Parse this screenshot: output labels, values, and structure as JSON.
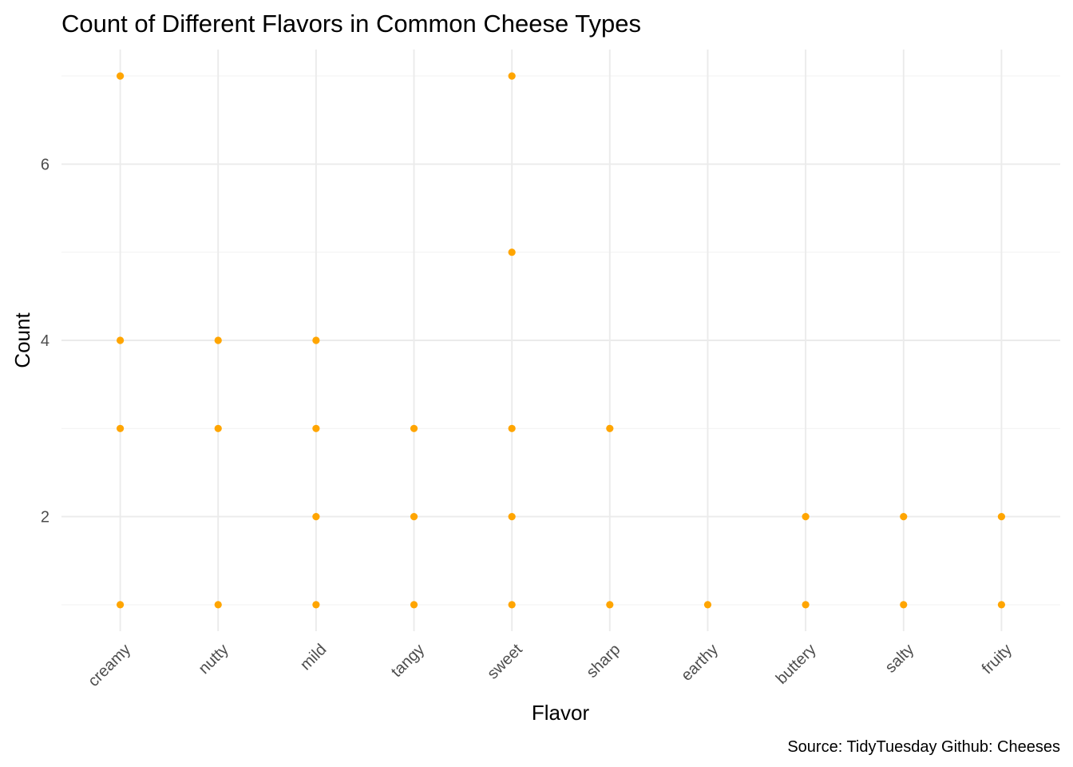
{
  "chart_data": {
    "type": "scatter",
    "title": "Count of Different Flavors in Common Cheese Types",
    "xlabel": "Flavor",
    "ylabel": "Count",
    "caption": "Source: TidyTuesday Github: Cheeses",
    "categories": [
      "creamy",
      "nutty",
      "mild",
      "tangy",
      "sweet",
      "sharp",
      "earthy",
      "buttery",
      "salty",
      "fruity"
    ],
    "y_ticks": [
      2,
      4,
      6
    ],
    "ylim": [
      0.7,
      7.3
    ],
    "grid": true,
    "legend": "none",
    "point_color": "#FFA500",
    "points": [
      {
        "x": "creamy",
        "y": 7
      },
      {
        "x": "creamy",
        "y": 4
      },
      {
        "x": "creamy",
        "y": 3
      },
      {
        "x": "creamy",
        "y": 1
      },
      {
        "x": "nutty",
        "y": 4
      },
      {
        "x": "nutty",
        "y": 3
      },
      {
        "x": "nutty",
        "y": 1
      },
      {
        "x": "mild",
        "y": 4
      },
      {
        "x": "mild",
        "y": 3
      },
      {
        "x": "mild",
        "y": 2
      },
      {
        "x": "mild",
        "y": 1
      },
      {
        "x": "tangy",
        "y": 3
      },
      {
        "x": "tangy",
        "y": 2
      },
      {
        "x": "tangy",
        "y": 1
      },
      {
        "x": "sweet",
        "y": 7
      },
      {
        "x": "sweet",
        "y": 5
      },
      {
        "x": "sweet",
        "y": 3
      },
      {
        "x": "sweet",
        "y": 2
      },
      {
        "x": "sweet",
        "y": 1
      },
      {
        "x": "sharp",
        "y": 3
      },
      {
        "x": "sharp",
        "y": 1
      },
      {
        "x": "earthy",
        "y": 1
      },
      {
        "x": "buttery",
        "y": 2
      },
      {
        "x": "buttery",
        "y": 1
      },
      {
        "x": "salty",
        "y": 2
      },
      {
        "x": "salty",
        "y": 1
      },
      {
        "x": "fruity",
        "y": 2
      },
      {
        "x": "fruity",
        "y": 1
      }
    ]
  }
}
